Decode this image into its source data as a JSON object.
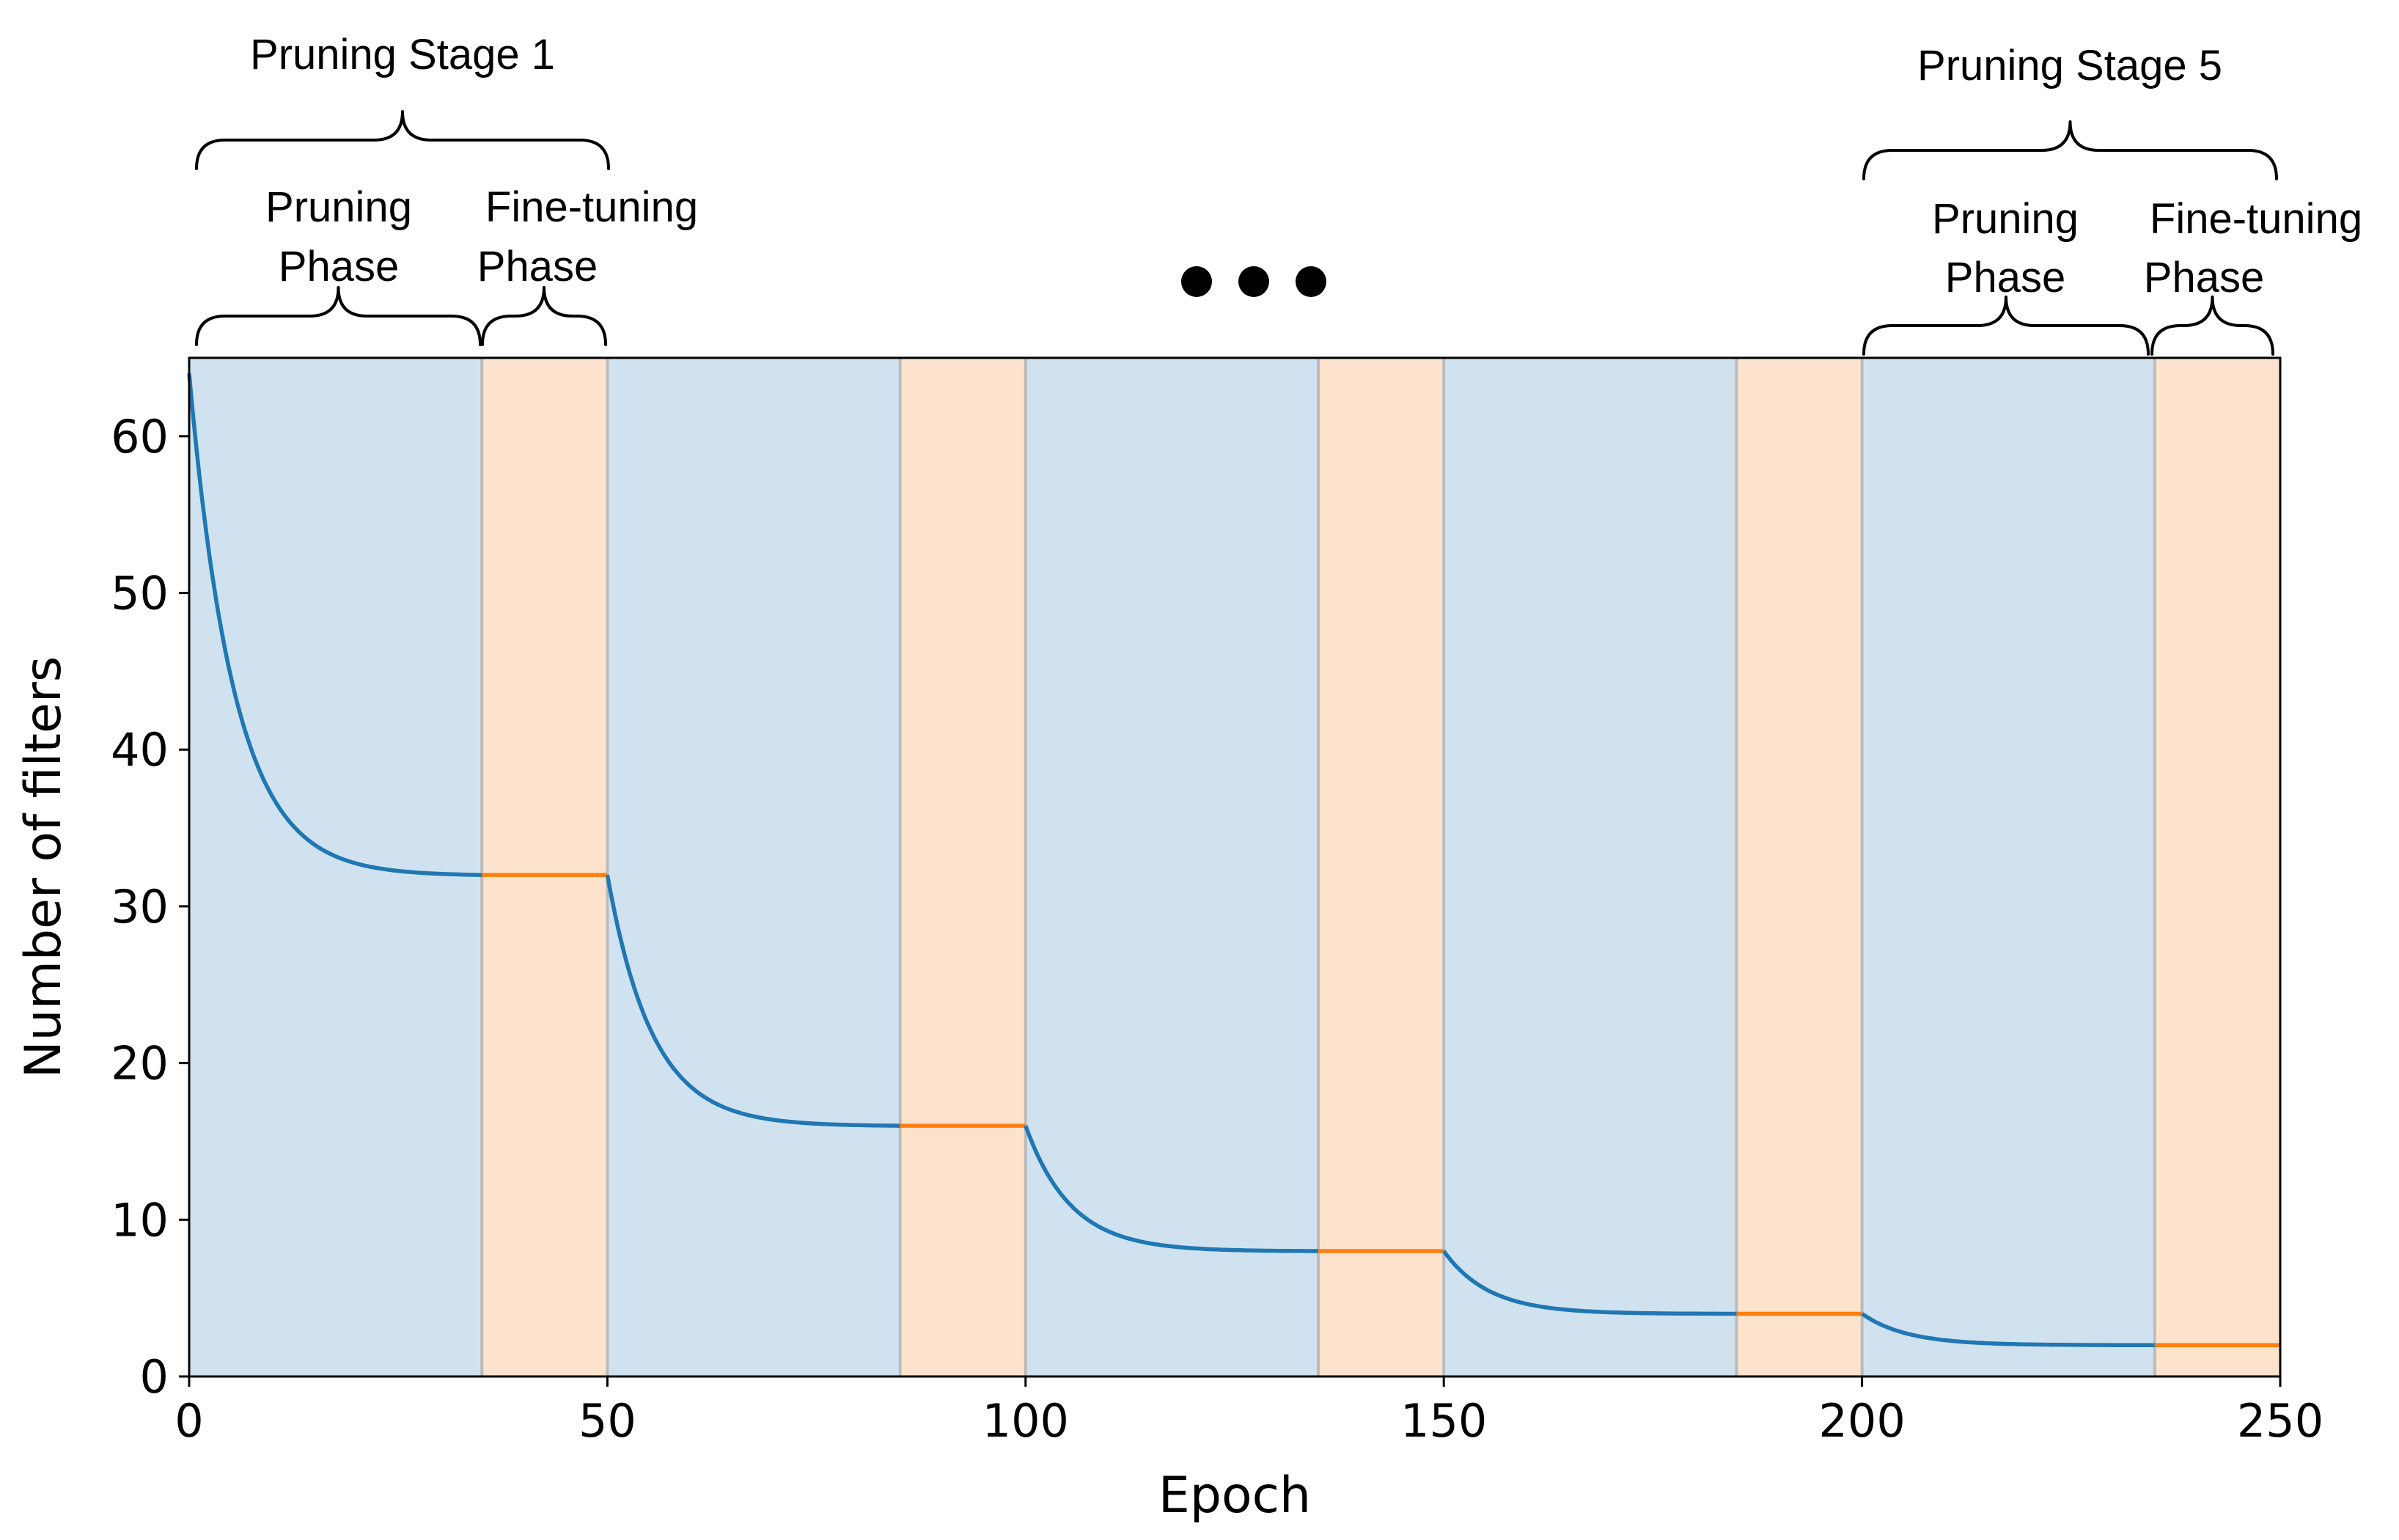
{
  "chart_data": {
    "type": "line",
    "xlabel": "Epoch",
    "ylabel": "Number of filters",
    "xlim": [
      0,
      250
    ],
    "ylim": [
      0,
      65
    ],
    "xticks": [
      0,
      50,
      100,
      150,
      200,
      250
    ],
    "yticks": [
      0,
      10,
      20,
      30,
      40,
      50,
      60
    ],
    "grid": false,
    "legend": "none",
    "phases": [
      {
        "type": "pruning",
        "x0": 0,
        "x1": 35
      },
      {
        "type": "fine-tuning",
        "x0": 35,
        "x1": 50
      },
      {
        "type": "pruning",
        "x0": 50,
        "x1": 85
      },
      {
        "type": "fine-tuning",
        "x0": 85,
        "x1": 100
      },
      {
        "type": "pruning",
        "x0": 100,
        "x1": 135
      },
      {
        "type": "fine-tuning",
        "x0": 135,
        "x1": 150
      },
      {
        "type": "pruning",
        "x0": 150,
        "x1": 185
      },
      {
        "type": "fine-tuning",
        "x0": 185,
        "x1": 200
      },
      {
        "type": "pruning",
        "x0": 200,
        "x1": 235
      },
      {
        "type": "fine-tuning",
        "x0": 235,
        "x1": 250
      }
    ],
    "stages": [
      {
        "start": 0,
        "end": 50,
        "y_start": 64,
        "y_end": 32
      },
      {
        "start": 50,
        "end": 100,
        "y_start": 32,
        "y_end": 16
      },
      {
        "start": 100,
        "end": 150,
        "y_start": 16,
        "y_end": 8
      },
      {
        "start": 150,
        "end": 200,
        "y_start": 8,
        "y_end": 4
      },
      {
        "start": 200,
        "end": 250,
        "y_start": 4,
        "y_end": 2
      }
    ],
    "series_colors": {
      "pruning": "#1f77b4",
      "fine-tuning": "#ff7f0e"
    },
    "band_colors": {
      "pruning": "#d0e2ef",
      "fine-tuning": "#fde3cd"
    },
    "boundary_color": "#bbbbbb",
    "annotations": {
      "stage1": {
        "label": "Pruning Stage 1",
        "pruning_line1": "Pruning",
        "pruning_line2": "Phase",
        "finetune_line1": "Fine-tuning",
        "finetune_line2": "Phase"
      },
      "stage5": {
        "label": "Pruning Stage 5",
        "pruning_line1": "Pruning",
        "pruning_line2": "Phase",
        "finetune_line1": "Fine-tuning",
        "finetune_line2": "Phase"
      },
      "ellipsis_dots": 3
    }
  }
}
